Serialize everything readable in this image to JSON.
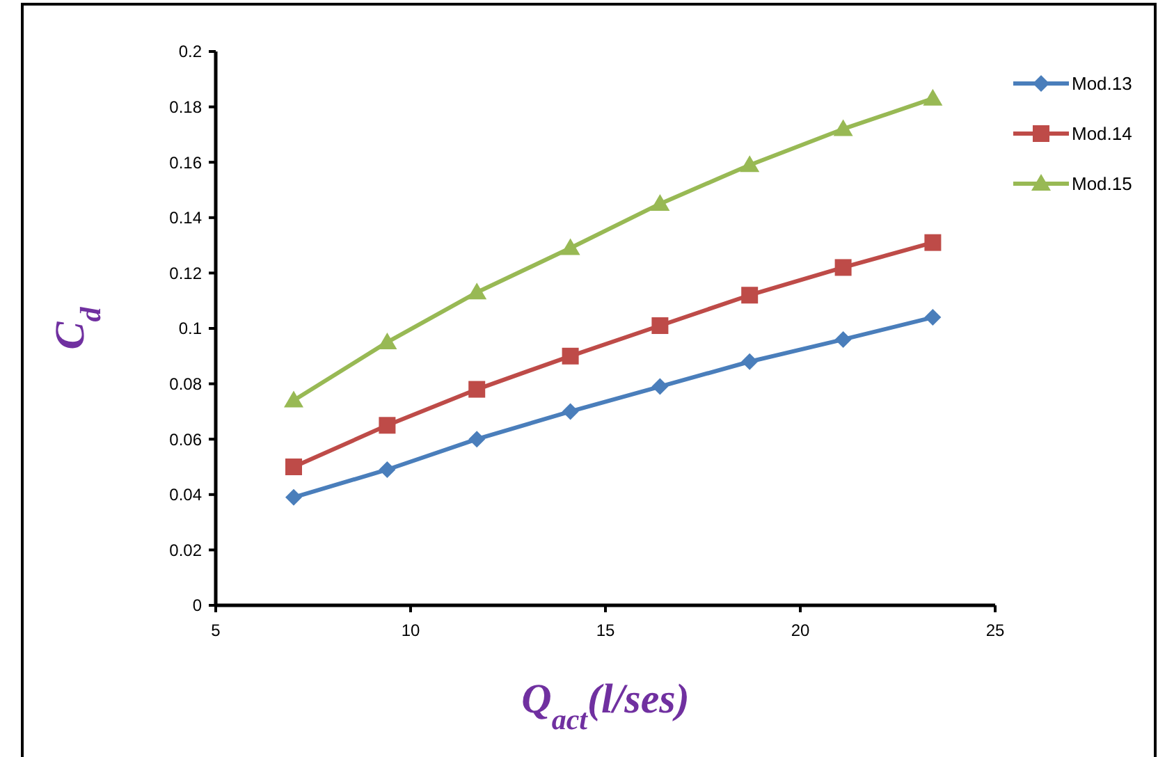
{
  "chart_data": {
    "type": "line",
    "xlabel": "Q$_{act}$(l/ses)",
    "ylabel": "C$_{d}$",
    "xlim": [
      5,
      25
    ],
    "xticks": [
      5,
      10,
      15,
      20,
      25
    ],
    "ylim": [
      0,
      0.2
    ],
    "yticks": [
      0,
      0.02,
      0.04,
      0.06,
      0.08,
      0.1,
      0.12,
      0.14,
      0.16,
      0.18,
      0.2
    ],
    "x": [
      7.0,
      9.4,
      11.7,
      14.1,
      16.4,
      18.7,
      21.1,
      23.4
    ],
    "series": [
      {
        "name": "Mod.13",
        "color": "#4a7ebb",
        "marker": "diamond",
        "values": [
          0.039,
          0.049,
          0.06,
          0.07,
          0.079,
          0.088,
          0.096,
          0.104
        ]
      },
      {
        "name": "Mod.14",
        "color": "#be4b48",
        "marker": "square",
        "values": [
          0.05,
          0.065,
          0.078,
          0.09,
          0.101,
          0.112,
          0.122,
          0.131
        ]
      },
      {
        "name": "Mod.15",
        "color": "#98b954",
        "marker": "triangle",
        "values": [
          0.074,
          0.095,
          0.113,
          0.129,
          0.145,
          0.159,
          0.172,
          0.183
        ]
      }
    ],
    "legend": "right",
    "grid": false
  }
}
